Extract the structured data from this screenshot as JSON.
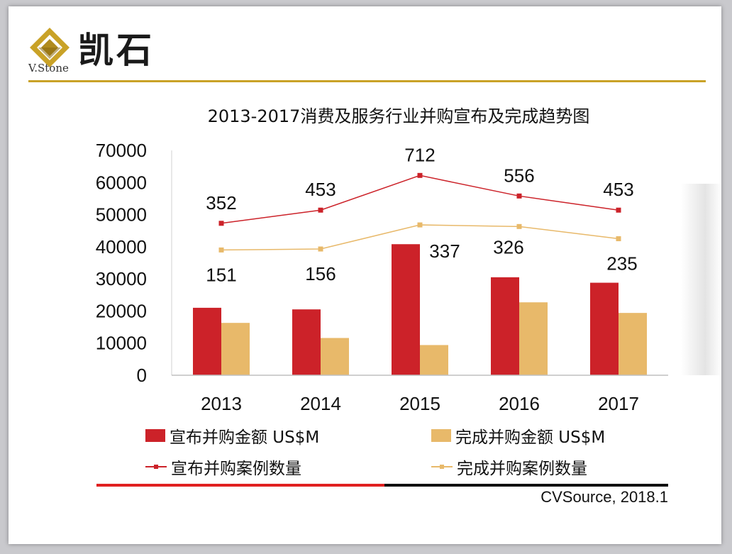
{
  "brand": {
    "name_cn": "凯石",
    "name_en": "V.Stone"
  },
  "source": "CVSource, 2018.1",
  "colors": {
    "announced": "#cc2229",
    "completed": "#e8b96a",
    "gold": "#c9a227"
  },
  "chart_data": {
    "type": "bar",
    "title": "2013-2017消费及服务行业并购宣布及完成趋势图",
    "categories": [
      "2013",
      "2014",
      "2015",
      "2016",
      "2017"
    ],
    "ylim": [
      0,
      70000
    ],
    "yticks": [
      "0",
      "10000",
      "20000",
      "30000",
      "40000",
      "50000",
      "60000",
      "70000"
    ],
    "legend_position": "bottom",
    "series": [
      {
        "name": "宣布并购金额 US$M",
        "kind": "bar",
        "color": "#cc2229",
        "values": [
          21000,
          20500,
          40800,
          30500,
          28800
        ]
      },
      {
        "name": "完成并购金额 US$M",
        "kind": "bar",
        "color": "#e8b96a",
        "values": [
          16300,
          11600,
          9400,
          22700,
          19400
        ]
      },
      {
        "name": "宣布并购案例数量",
        "kind": "line",
        "color": "#cc2229",
        "values": [
          352,
          453,
          712,
          556,
          453
        ],
        "plotted_y": [
          47300,
          51400,
          62200,
          55800,
          51400
        ],
        "labels": [
          "352",
          "453",
          "712",
          "556",
          "453"
        ]
      },
      {
        "name": "完成并购案例数量",
        "kind": "line",
        "color": "#e8b96a",
        "values": [
          151,
          156,
          337,
          326,
          235
        ],
        "plotted_y": [
          39000,
          39300,
          46800,
          46300,
          42500
        ],
        "labels": [
          "151",
          "156",
          "337",
          "326",
          "235"
        ]
      }
    ]
  }
}
